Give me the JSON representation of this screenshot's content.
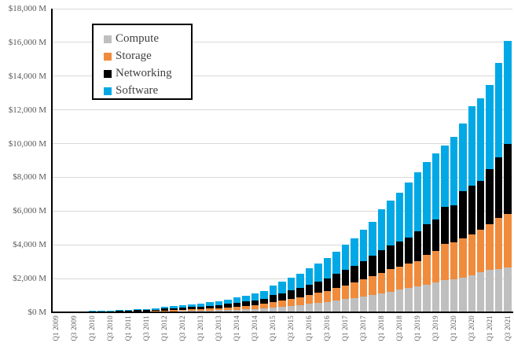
{
  "chart": {
    "background": "#FFFFFF",
    "y_axis": {
      "tick_labels_bottom_up": [
        "$0 M",
        "$2,000 M",
        "$4,000 M",
        "$6,000 M",
        "$8,000 M",
        "$10,000 M",
        "$12,000 M",
        "$14,000 M",
        "$16,000 M",
        "$18,000 M"
      ],
      "min": 0,
      "max": 18000,
      "step": 2000
    },
    "x_axis": {
      "tick_labels": [
        "Q1 2009",
        "Q3 2009",
        "Q1 2010",
        "Q3 2010",
        "Q1 2011",
        "Q3 2011",
        "Q1 2012",
        "Q3 2012",
        "Q1 2013",
        "Q3 2013",
        "Q1 2014",
        "Q3 2014",
        "Q1 2015",
        "Q3 2015",
        "Q1 2016",
        "Q3 2016",
        "Q1 2017",
        "Q3 2017",
        "Q1 2018",
        "Q3 2018",
        "Q1 2019",
        "Q3 2019",
        "Q1 2020",
        "Q3 2020",
        "Q1 2021",
        "Q3 2021"
      ],
      "label_every_n_bars": 2
    },
    "colors": {
      "gridline": "#D9D9D9",
      "axis": "#000000",
      "tick_text": "#595959",
      "legend_text": "#404040"
    }
  },
  "chart_data": {
    "type": "bar",
    "stacked": true,
    "unit": "$ millions",
    "grid": true,
    "legend_position": "top-left-inside",
    "ylim": [
      0,
      18000
    ],
    "categories": [
      "Q1 2009",
      "Q2 2009",
      "Q3 2009",
      "Q4 2009",
      "Q1 2010",
      "Q2 2010",
      "Q3 2010",
      "Q4 2010",
      "Q1 2011",
      "Q2 2011",
      "Q3 2011",
      "Q4 2011",
      "Q1 2012",
      "Q2 2012",
      "Q3 2012",
      "Q4 2012",
      "Q1 2013",
      "Q2 2013",
      "Q3 2013",
      "Q4 2013",
      "Q1 2014",
      "Q2 2014",
      "Q3 2014",
      "Q4 2014",
      "Q1 2015",
      "Q2 2015",
      "Q3 2015",
      "Q4 2015",
      "Q1 2016",
      "Q2 2016",
      "Q3 2016",
      "Q4 2016",
      "Q1 2017",
      "Q2 2017",
      "Q3 2017",
      "Q4 2017",
      "Q1 2018",
      "Q2 2018",
      "Q3 2018",
      "Q4 2018",
      "Q1 2019",
      "Q2 2019",
      "Q3 2019",
      "Q4 2019",
      "Q1 2020",
      "Q2 2020",
      "Q3 2020",
      "Q4 2020",
      "Q1 2021",
      "Q2 2021",
      "Q3 2021"
    ],
    "series": [
      {
        "name": "Compute",
        "color": "#BFBFBF",
        "values": [
          6,
          7,
          8,
          10,
          12,
          14,
          17,
          20,
          24,
          28,
          33,
          40,
          54,
          61,
          70,
          80,
          92,
          105,
          121,
          139,
          160,
          182,
          206,
          236,
          300,
          340,
          390,
          440,
          500,
          560,
          620,
          700,
          780,
          850,
          940,
          1030,
          1134,
          1230,
          1339,
          1440,
          1540,
          1648,
          1750,
          1913,
          1960,
          2050,
          2200,
          2380,
          2504,
          2560,
          2660
        ]
      },
      {
        "name": "Storage",
        "color": "#F08B3C",
        "values": [
          6,
          7,
          8,
          10,
          12,
          14,
          17,
          21,
          25,
          30,
          35,
          42,
          57,
          65,
          75,
          85,
          97,
          112,
          129,
          148,
          172,
          196,
          223,
          257,
          310,
          350,
          405,
          460,
          525,
          590,
          655,
          740,
          825,
          900,
          1010,
          1120,
          1214,
          1320,
          1353,
          1460,
          1510,
          1759,
          1870,
          2147,
          2178,
          2350,
          2405,
          2534,
          2723,
          3055,
          3190
        ]
      },
      {
        "name": "Networking",
        "color": "#000000",
        "values": [
          15,
          18,
          21,
          24,
          28,
          33,
          38,
          44,
          51,
          59,
          68,
          78,
          102,
          113,
          126,
          139,
          154,
          171,
          190,
          211,
          237,
          261,
          287,
          319,
          405,
          450,
          505,
          555,
          620,
          685,
          750,
          835,
          920,
          1000,
          1100,
          1200,
          1324,
          1420,
          1500,
          1550,
          1750,
          1793,
          1900,
          2178,
          2222,
          2800,
          2895,
          2886,
          3273,
          3585,
          4150
        ]
      },
      {
        "name": "Software",
        "color": "#00A9E6",
        "values": [
          13,
          16,
          19,
          22,
          26,
          31,
          36,
          41,
          48,
          57,
          68,
          80,
          107,
          121,
          139,
          156,
          177,
          202,
          230,
          262,
          301,
          341,
          384,
          438,
          585,
          660,
          750,
          845,
          955,
          1065,
          1175,
          1325,
          1475,
          1650,
          1850,
          2000,
          2428,
          2630,
          2908,
          3250,
          3500,
          3700,
          3880,
          3662,
          4040,
          4000,
          4700,
          4900,
          5000,
          5600,
          6100
        ]
      }
    ]
  }
}
